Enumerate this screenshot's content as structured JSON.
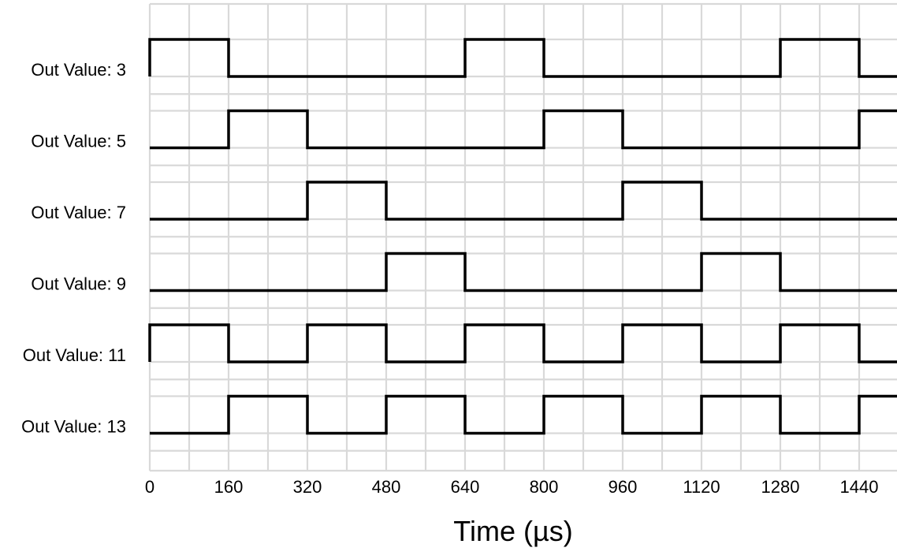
{
  "chart_data": {
    "type": "line",
    "subtype": "digital-timing",
    "xlabel": "Time (µs)",
    "xlim": [
      0,
      1520
    ],
    "x_ticks": [
      0,
      160,
      320,
      480,
      640,
      800,
      960,
      1120,
      1280,
      1440
    ],
    "grid": true,
    "grid_minor_step": 80,
    "series": [
      {
        "name": "Out Value: 3",
        "label": "Out Value: 3",
        "initial": 1,
        "transitions": [
          160,
          640,
          800,
          1280,
          1440
        ]
      },
      {
        "name": "Out Value: 5",
        "label": "Out Value: 5",
        "initial": 0,
        "transitions": [
          160,
          320,
          800,
          960,
          1440
        ]
      },
      {
        "name": "Out Value: 7",
        "label": "Out Value: 7",
        "initial": 0,
        "transitions": [
          320,
          480,
          960,
          1120
        ]
      },
      {
        "name": "Out Value: 9",
        "label": "Out Value: 9",
        "initial": 0,
        "transitions": [
          480,
          640,
          1120,
          1280
        ]
      },
      {
        "name": "Out Value: 11",
        "label": "Out Value: 11",
        "initial": 1,
        "transitions": [
          160,
          320,
          480,
          640,
          800,
          960,
          1120,
          1280,
          1440
        ]
      },
      {
        "name": "Out Value: 13",
        "label": "Out Value: 13",
        "initial": 0,
        "transitions": [
          160,
          320,
          480,
          640,
          800,
          960,
          1120,
          1280,
          1440
        ]
      }
    ],
    "colors": {
      "wave": "#000000",
      "grid": "#d9d9d9",
      "background": "#ffffff"
    }
  }
}
